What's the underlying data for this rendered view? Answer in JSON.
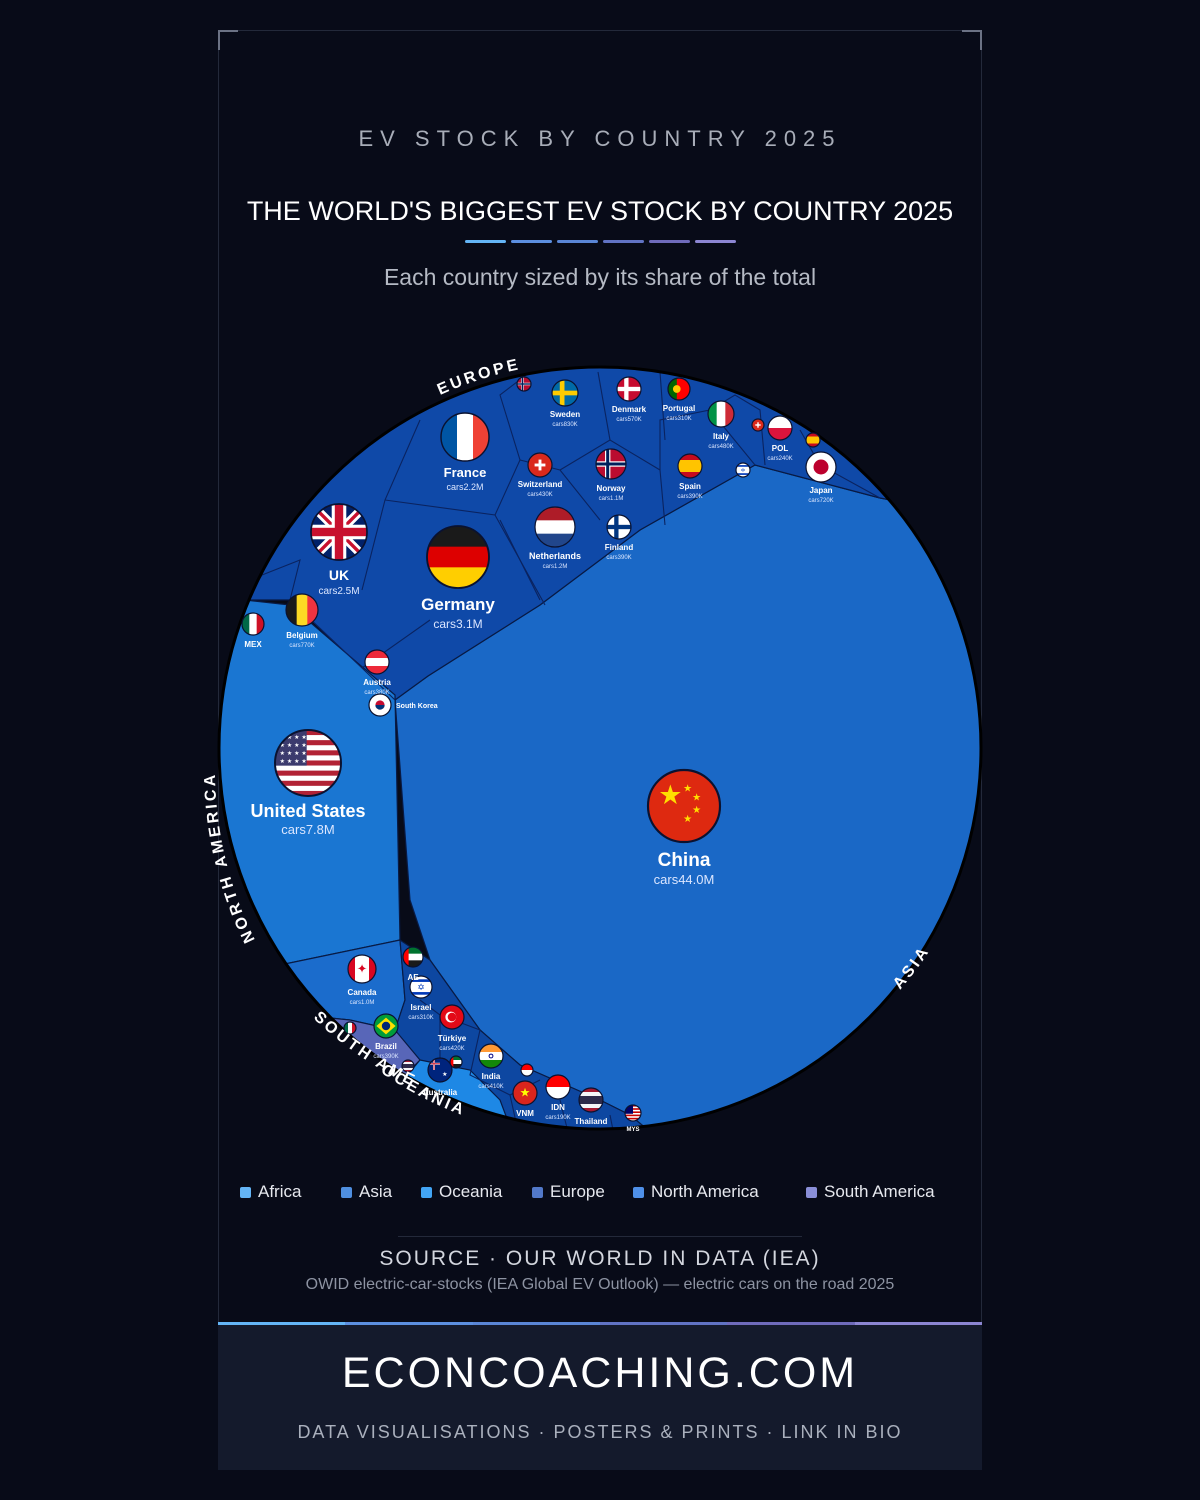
{
  "header": {
    "kicker": "EV STOCK BY COUNTRY 2025",
    "title": "THE WORLD'S BIGGEST EV STOCK BY COUNTRY 2025",
    "subtitle": "Each country sized by its share of the total"
  },
  "colors": {
    "background": "#080b18",
    "europe": "#0f49a8",
    "china": "#1a68c6",
    "north_america": "#1a76d2",
    "south_america": "#5866b8",
    "oceania": "#1e88e5",
    "asia_small": "#0d47a1",
    "title_rule": [
      "#64b5f6",
      "#5c8fe0",
      "#5a86d6",
      "#6173c4",
      "#6f6bbb",
      "#8c86d2"
    ]
  },
  "chart_data": {
    "type": "voronoi-treemap",
    "unit_prefix": "cars",
    "regions": [
      {
        "name": "EUROPE"
      },
      {
        "name": "ASIA"
      },
      {
        "name": "NORTH AMERICA"
      },
      {
        "name": "SOUTH AMERI"
      },
      {
        "name": "OCEANIA"
      }
    ],
    "countries": [
      {
        "name": "China",
        "region": "Asia",
        "value": "cars44.0M",
        "flag": "china-flag"
      },
      {
        "name": "United States",
        "region": "North America",
        "value": "cars7.8M",
        "flag": "usa-flag"
      },
      {
        "name": "Germany",
        "region": "Europe",
        "value": "cars3.1M",
        "flag": "germany-flag"
      },
      {
        "name": "UK",
        "region": "Europe",
        "value": "cars2.5M",
        "flag": "uk-flag"
      },
      {
        "name": "France",
        "region": "Europe",
        "value": "cars2.2M",
        "flag": "france-flag"
      },
      {
        "name": "Netherlands",
        "region": "Europe",
        "value": "cars1.2M",
        "flag": "netherlands-flag"
      },
      {
        "name": "Norway",
        "region": "Europe",
        "value": "cars1.1M",
        "flag": "norway-flag"
      },
      {
        "name": "Canada",
        "region": "North America",
        "value": "cars1.0M",
        "flag": "canada-flag"
      },
      {
        "name": "Sweden",
        "region": "Europe",
        "value": "cars830K",
        "flag": "sweden-flag"
      },
      {
        "name": "Belgium",
        "region": "Europe",
        "value": "cars770K",
        "flag": "belgium-flag"
      },
      {
        "name": "Japan",
        "region": "Asia",
        "value": "cars720K",
        "flag": "japan-flag"
      },
      {
        "name": "Denmark",
        "region": "Europe",
        "value": "cars570K",
        "flag": "denmark-flag"
      },
      {
        "name": "Italy",
        "region": "Europe",
        "value": "cars480K",
        "flag": "italy-flag"
      },
      {
        "name": "Switzerland",
        "region": "Europe",
        "value": "cars430K",
        "flag": "switzerland-flag"
      },
      {
        "name": "Türkiye",
        "region": "Asia",
        "value": "cars420K",
        "flag": "turkey-flag"
      },
      {
        "name": "India",
        "region": "Asia",
        "value": "cars410K",
        "flag": "india-flag"
      },
      {
        "name": "Finland",
        "region": "Europe",
        "value": "cars390K",
        "flag": "finland-flag"
      },
      {
        "name": "Spain",
        "region": "Europe",
        "value": "cars390K",
        "flag": "spain-flag"
      },
      {
        "name": "Austria",
        "region": "Europe",
        "value": "cars380K",
        "flag": "austria-flag"
      },
      {
        "name": "Portugal",
        "region": "Europe",
        "value": "cars310K",
        "flag": "portugal-flag"
      },
      {
        "name": "Israel",
        "region": "Asia",
        "value": "cars310K",
        "flag": "israel-flag"
      },
      {
        "name": "Brazil",
        "region": "South America",
        "value": "cars390K",
        "flag": "brazil-flag"
      },
      {
        "name": "POL",
        "region": "Europe",
        "value": "cars240K",
        "flag": "poland-flag"
      },
      {
        "name": "IDN",
        "region": "Asia",
        "value": "cars190K",
        "flag": "indonesia-flag"
      },
      {
        "name": "VNM",
        "region": "Asia",
        "value": "",
        "flag": "vietnam-flag"
      },
      {
        "name": "Thailand",
        "region": "Asia",
        "value": "",
        "flag": "thailand-flag"
      },
      {
        "name": "Australia",
        "region": "Oceania",
        "value": "",
        "flag": "australia-flag"
      },
      {
        "name": "MEX",
        "region": "North America",
        "value": "",
        "flag": "mexico-flag"
      },
      {
        "name": "South Korea",
        "region": "Asia",
        "value": "",
        "flag": "south-korea-flag"
      },
      {
        "name": "AE",
        "region": "Asia",
        "value": "",
        "flag": "uae-flag"
      },
      {
        "name": "MYS",
        "region": "Asia",
        "value": "",
        "flag": "malaysia-flag"
      }
    ]
  },
  "legend": [
    "Africa",
    "Asia",
    "Oceania",
    "Europe",
    "North America",
    "South America"
  ],
  "legend_colors": [
    "#64b5f6",
    "#4f8fe0",
    "#42a5f5",
    "#5279c9",
    "#4f90e8",
    "#8a8fd8"
  ],
  "source": {
    "title": "SOURCE · OUR WORLD IN DATA (IEA)",
    "note": "OWID electric-car-stocks (IEA Global EV Outlook) — electric cars on the road 2025"
  },
  "footer": {
    "brand": "ECONCOACHING.COM",
    "tagline": "DATA VISUALISATIONS · POSTERS & PRINTS · LINK IN BIO"
  }
}
